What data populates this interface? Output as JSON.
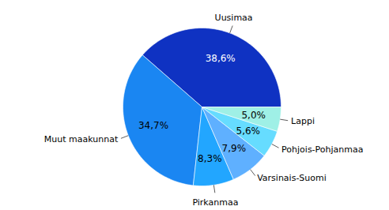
{
  "chart_data": {
    "type": "pie",
    "categories": [
      "Uusimaa",
      "Muut maakunnat",
      "Pirkanmaa",
      "Varsinais-Suomi",
      "Pohjois-Pohjanmaa",
      "Lappi"
    ],
    "values": [
      38.6,
      34.7,
      8.3,
      7.9,
      5.6,
      5.0
    ],
    "value_labels": [
      "38,6%",
      "34,7%",
      "8,3%",
      "7,9%",
      "5,6%",
      "5,0%"
    ],
    "colors": [
      "#0f32c2",
      "#1a86f2",
      "#22a6ff",
      "#5fb0ff",
      "#66dcff",
      "#9ff0e6"
    ],
    "data_labels": true,
    "tick_labels": false
  }
}
